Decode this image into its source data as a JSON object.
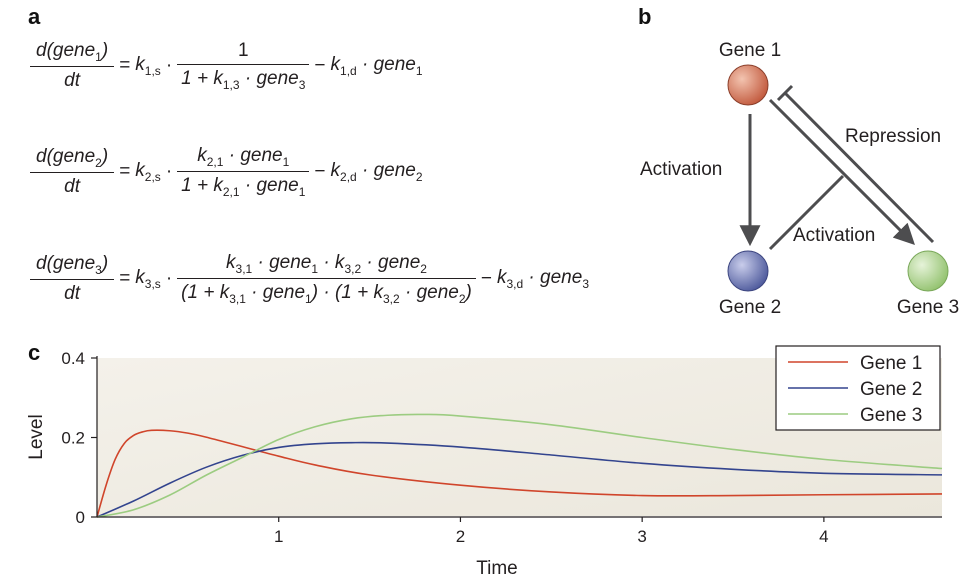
{
  "panels": {
    "a": "a",
    "b": "b",
    "c": "c"
  },
  "equations": {
    "eq1": {
      "lhs_num": "d(gene",
      "lhs_num_sub": "1",
      "lhs_num_end": ")",
      "lhs_den": "dt",
      "k_s": "k",
      "k_s_sub": "1,s",
      "frac_num": "1",
      "frac_den_a": "1 + k",
      "frac_den_a_sub": "1,3",
      "frac_den_b": " · gene",
      "frac_den_b_sub": "3",
      "k_d": "k",
      "k_d_sub": "1,d",
      "tail": " · gene",
      "tail_sub": "1"
    },
    "eq2": {
      "lhs_num": "d(gene",
      "lhs_num_sub": "2",
      "lhs_num_end": ")",
      "lhs_den": "dt",
      "k_s": "k",
      "k_s_sub": "2,s",
      "frac_num_a": "k",
      "frac_num_a_sub": "2,1",
      "frac_num_b": " · gene",
      "frac_num_b_sub": "1",
      "frac_den_a": "1 + k",
      "frac_den_a_sub": "2,1",
      "frac_den_b": " · gene",
      "frac_den_b_sub": "1",
      "k_d": "k",
      "k_d_sub": "2,d",
      "tail": " · gene",
      "tail_sub": "2"
    },
    "eq3": {
      "lhs_num": "d(gene",
      "lhs_num_sub": "3",
      "lhs_num_end": ")",
      "lhs_den": "dt",
      "k_s": "k",
      "k_s_sub": "3,s",
      "n1": "k",
      "n1_sub": "3,1",
      "n2": " · gene",
      "n2_sub": "1",
      "n3": " · k",
      "n3_sub": "3,2",
      "n4": " · gene",
      "n4_sub": "2",
      "d1": "(1 + k",
      "d1_sub": "3,1",
      "d2": " · gene",
      "d2_sub": "1",
      "d3": ") · (1 + k",
      "d3_sub": "3,2",
      "d4": " · gene",
      "d4_sub": "2",
      "d5": ")",
      "k_d": "k",
      "k_d_sub": "3,d",
      "tail": " · gene",
      "tail_sub": "3"
    },
    "equals": "=",
    "dot": "·",
    "minus": "−"
  },
  "network": {
    "gene1": "Gene 1",
    "gene2": "Gene 2",
    "gene3": "Gene 3",
    "activation_left": "Activation",
    "activation_mid": "Activation",
    "repression": "Repression",
    "colors": {
      "gene1": "#c8664a",
      "gene2": "#5d67a6",
      "gene3": "#9fcb7d",
      "edge": "#4d4d4f"
    }
  },
  "chart_data": {
    "type": "line",
    "xlabel": "Time",
    "ylabel": "Level",
    "xlim": [
      0,
      4.65
    ],
    "ylim": [
      0,
      0.4
    ],
    "xticks": [
      1,
      2,
      3,
      4
    ],
    "yticks": [
      0,
      0.2,
      0.4
    ],
    "ytick_labels": [
      "0",
      "0.2",
      "0.4"
    ],
    "legend_position": "top-right",
    "grid": false,
    "series": [
      {
        "name": "Gene 1",
        "color": "#d0452b",
        "x": [
          0,
          0.05,
          0.1,
          0.15,
          0.2,
          0.25,
          0.3,
          0.4,
          0.5,
          0.6,
          0.8,
          1.0,
          1.2,
          1.5,
          2.0,
          2.5,
          3.0,
          3.5,
          4.0,
          4.65
        ],
        "y": [
          0,
          0.08,
          0.145,
          0.185,
          0.205,
          0.214,
          0.218,
          0.217,
          0.211,
          0.201,
          0.177,
          0.153,
          0.131,
          0.106,
          0.08,
          0.063,
          0.054,
          0.054,
          0.056,
          0.058
        ]
      },
      {
        "name": "Gene 2",
        "color": "#33448e",
        "x": [
          0,
          0.2,
          0.4,
          0.6,
          0.8,
          1.0,
          1.2,
          1.4,
          1.6,
          2.0,
          2.5,
          3.0,
          3.5,
          4.0,
          4.65
        ],
        "y": [
          0,
          0.04,
          0.085,
          0.125,
          0.155,
          0.175,
          0.184,
          0.187,
          0.186,
          0.176,
          0.156,
          0.135,
          0.12,
          0.11,
          0.106
        ]
      },
      {
        "name": "Gene 3",
        "color": "#9ccc81",
        "x": [
          0,
          0.2,
          0.4,
          0.6,
          0.8,
          1.0,
          1.2,
          1.4,
          1.6,
          1.8,
          2.0,
          2.5,
          3.0,
          3.5,
          4.0,
          4.65
        ],
        "y": [
          0,
          0.018,
          0.055,
          0.105,
          0.15,
          0.195,
          0.227,
          0.247,
          0.256,
          0.258,
          0.254,
          0.232,
          0.2,
          0.17,
          0.145,
          0.122
        ]
      }
    ]
  }
}
